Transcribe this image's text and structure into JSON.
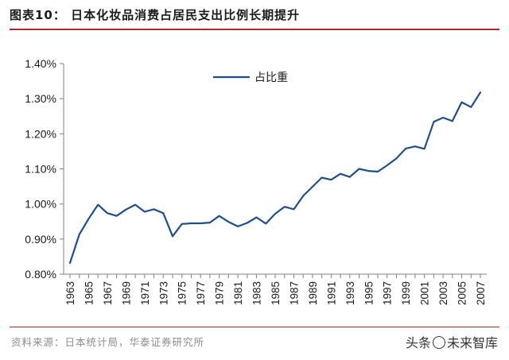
{
  "header": {
    "title": "图表10： 日本化妆品消费占居民支出比例长期提升"
  },
  "footer": {
    "source": "资料来源：日本统计局，华泰证券研究所",
    "watermark_prefix": "头条",
    "watermark_suffix": "未来智库",
    "watermark_icon": "at-circle-icon"
  },
  "colors": {
    "line": "#1f4e8c",
    "accent": "#b0282d",
    "axis": "#808080",
    "text": "#1a1a1a"
  },
  "chart_data": {
    "type": "line",
    "title": "图表10： 日本化妆品消费占居民支出比例长期提升",
    "xlabel": "",
    "ylabel": "",
    "x": [
      1963,
      1964,
      1965,
      1966,
      1967,
      1968,
      1969,
      1970,
      1971,
      1972,
      1973,
      1974,
      1975,
      1976,
      1977,
      1978,
      1979,
      1980,
      1981,
      1982,
      1983,
      1984,
      1985,
      1986,
      1987,
      1988,
      1989,
      1990,
      1991,
      1992,
      1993,
      1994,
      1995,
      1996,
      1997,
      1998,
      1999,
      2000,
      2001,
      2002,
      2003,
      2004,
      2005,
      2006,
      2007
    ],
    "series": [
      {
        "name": "占比重",
        "values": [
          0.832,
          0.913,
          0.958,
          0.998,
          0.974,
          0.966,
          0.984,
          0.998,
          0.978,
          0.985,
          0.974,
          0.908,
          0.943,
          0.945,
          0.945,
          0.947,
          0.966,
          0.949,
          0.936,
          0.946,
          0.962,
          0.944,
          0.972,
          0.992,
          0.985,
          1.023,
          1.049,
          1.075,
          1.069,
          1.086,
          1.077,
          1.1,
          1.094,
          1.092,
          1.11,
          1.13,
          1.158,
          1.164,
          1.157,
          1.234,
          1.246,
          1.236,
          1.29,
          1.276,
          1.318
        ]
      }
    ],
    "ylim": [
      0.8,
      1.4
    ],
    "yticks": [
      0.8,
      0.9,
      1.0,
      1.1,
      1.2,
      1.3,
      1.4
    ],
    "ytick_labels": [
      "0.80%",
      "0.90%",
      "1.00%",
      "1.10%",
      "1.20%",
      "1.30%",
      "1.40%"
    ],
    "xtick_labels": [
      "1963",
      "1965",
      "1967",
      "1969",
      "1971",
      "1973",
      "1975",
      "1977",
      "1979",
      "1981",
      "1983",
      "1985",
      "1987",
      "1989",
      "1991",
      "1993",
      "1995",
      "1997",
      "1999",
      "2001",
      "2003",
      "2005",
      "2007"
    ],
    "legend": "top-center",
    "grid": false
  }
}
